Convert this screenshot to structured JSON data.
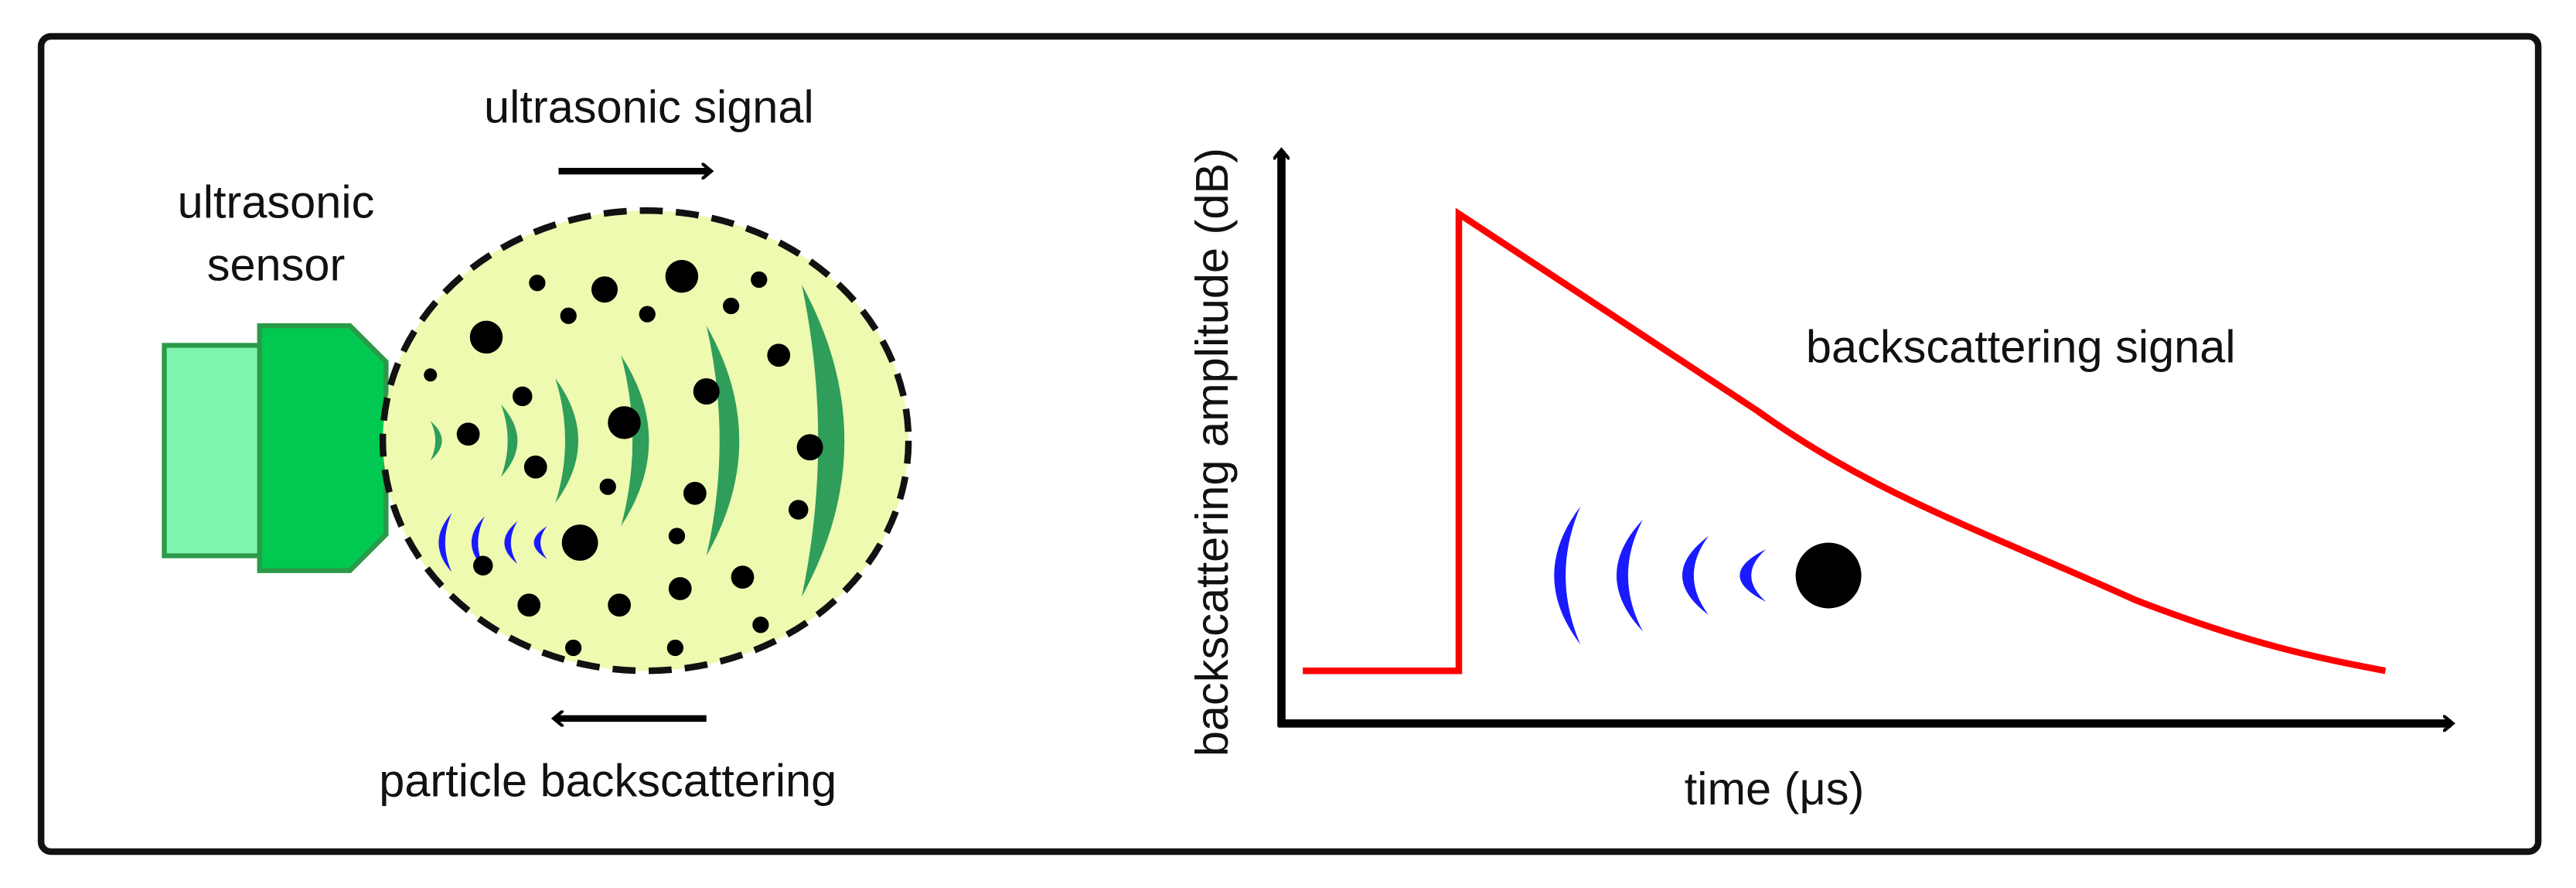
{
  "sensor_label": [
    "ultrasonic",
    "sensor"
  ],
  "signal_label": "ultrasonic signal",
  "backscatter_label": "particle backscattering",
  "graph": {
    "y_axis_label": "backscattering amplitude (dB)",
    "x_axis_label": "time (μs)",
    "curve_label": "backscattering signal"
  }
}
